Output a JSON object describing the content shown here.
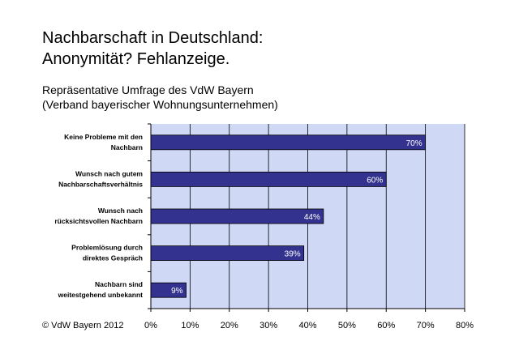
{
  "header": {
    "title_line1": "Nachbarschaft in Deutschland:",
    "title_line2": "Anonymität? Fehlanzeige.",
    "subtitle_line1": "Repräsentative Umfrage des VdW Bayern",
    "subtitle_line2": "(Verband bayerischer Wohnungsunternehmen)"
  },
  "footer": {
    "credit": "© VdW Bayern 2012"
  },
  "chart_data": {
    "type": "bar",
    "orientation": "horizontal",
    "categories": [
      [
        "Keine Probleme mit den",
        "Nachbarn"
      ],
      [
        "Wunsch nach gutem",
        "Nachbarschaftsverhältnis"
      ],
      [
        "Wunsch nach",
        "rücksichtsvollen Nachbarn"
      ],
      [
        "Problemlösung durch",
        "direktes Gespräch"
      ],
      [
        "Nachbarn sind",
        "weitestgehend unbekannt"
      ]
    ],
    "values": [
      70,
      60,
      44,
      39,
      9
    ],
    "value_labels": [
      "70%",
      "60%",
      "44%",
      "39%",
      "9%"
    ],
    "xlim": [
      0,
      80
    ],
    "x_ticks": [
      0,
      10,
      20,
      30,
      40,
      50,
      60,
      70,
      80
    ],
    "x_tick_labels": [
      "0%",
      "10%",
      "20%",
      "30%",
      "40%",
      "50%",
      "60%",
      "70%",
      "80%"
    ],
    "grid": true,
    "colors": {
      "bar": "#33338f",
      "plot_background": "#cfd8f5",
      "label": "#ffffff"
    }
  }
}
